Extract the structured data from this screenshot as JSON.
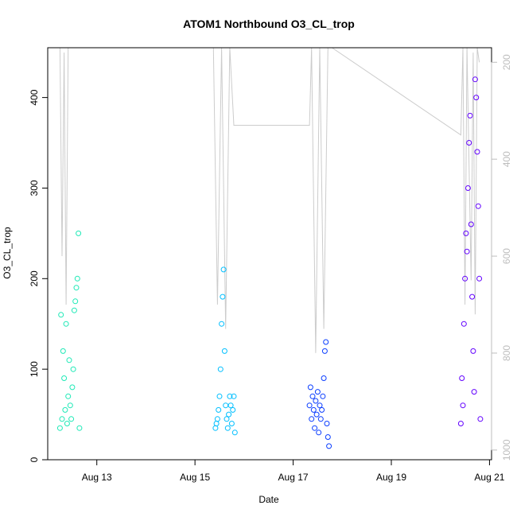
{
  "chart_data": {
    "type": "scatter",
    "title": "ATOM1 Northbound O3_CL_trop",
    "xlabel": "Date",
    "ylabel": "O3_CL_trop",
    "x_axis": {
      "type": "date",
      "range": [
        "2016-08-12T00:00",
        "2016-08-21T01:00"
      ],
      "ticks": [
        {
          "value": "2016-08-13",
          "label": "Aug 13"
        },
        {
          "value": "2016-08-15",
          "label": "Aug 15"
        },
        {
          "value": "2016-08-17",
          "label": "Aug 17"
        },
        {
          "value": "2016-08-19",
          "label": "Aug 19"
        },
        {
          "value": "2016-08-21",
          "label": "Aug 21"
        }
      ]
    },
    "y_axis": {
      "range": [
        0,
        455
      ],
      "ticks": [
        {
          "value": 0,
          "label": "0"
        },
        {
          "value": 100,
          "label": "100"
        },
        {
          "value": 200,
          "label": "200"
        },
        {
          "value": 300,
          "label": "300"
        },
        {
          "value": 400,
          "label": "400"
        }
      ]
    },
    "y2_axis": {
      "reversed": true,
      "color": "#bdbdbd",
      "range": [
        1020,
        170
      ],
      "ticks": [
        {
          "value": 200,
          "label": "200"
        },
        {
          "value": 400,
          "label": "400"
        },
        {
          "value": 600,
          "label": "600"
        },
        {
          "value": 800,
          "label": "800"
        },
        {
          "value": 1000,
          "label": "1000"
        }
      ]
    },
    "grid": false,
    "legend": "none",
    "series": [
      {
        "color": "#1de9b6",
        "flight": "Aug 12",
        "x": [
          "2016-08-12T06:00",
          "2016-08-12T06:30",
          "2016-08-12T07:00",
          "2016-08-12T07:30",
          "2016-08-12T08:00",
          "2016-08-12T08:30",
          "2016-08-12T09:00",
          "2016-08-12T09:30",
          "2016-08-12T10:00",
          "2016-08-12T10:30",
          "2016-08-12T11:00",
          "2016-08-12T11:30",
          "2016-08-12T12:00",
          "2016-08-12T12:30",
          "2016-08-12T13:00",
          "2016-08-12T13:30",
          "2016-08-12T14:00",
          "2016-08-12T14:30",
          "2016-08-12T15:00",
          "2016-08-12T15:30"
        ],
        "y": [
          35,
          160,
          45,
          120,
          90,
          55,
          150,
          40,
          70,
          110,
          60,
          45,
          80,
          100,
          165,
          175,
          190,
          200,
          250,
          35
        ]
      },
      {
        "color": "#00bfff",
        "flight": "Aug 15",
        "x": [
          "2016-08-15T10:00",
          "2016-08-15T10:30",
          "2016-08-15T11:00",
          "2016-08-15T11:30",
          "2016-08-15T12:00",
          "2016-08-15T12:30",
          "2016-08-15T13:00",
          "2016-08-15T13:30",
          "2016-08-15T14:00",
          "2016-08-15T14:30",
          "2016-08-15T15:00",
          "2016-08-15T15:30",
          "2016-08-15T16:00",
          "2016-08-15T16:30",
          "2016-08-15T17:00",
          "2016-08-15T17:30",
          "2016-08-15T18:00",
          "2016-08-15T18:30",
          "2016-08-15T19:00",
          "2016-08-15T19:30"
        ],
        "y": [
          35,
          40,
          45,
          55,
          70,
          100,
          150,
          180,
          210,
          120,
          60,
          45,
          35,
          50,
          70,
          60,
          40,
          55,
          70,
          30
        ]
      },
      {
        "color": "#0a3dff",
        "flight": "Aug 17",
        "x": [
          "2016-08-17T08:00",
          "2016-08-17T08:30",
          "2016-08-17T09:00",
          "2016-08-17T09:30",
          "2016-08-17T10:00",
          "2016-08-17T10:30",
          "2016-08-17T11:00",
          "2016-08-17T11:30",
          "2016-08-17T12:00",
          "2016-08-17T12:30",
          "2016-08-17T13:00",
          "2016-08-17T13:30",
          "2016-08-17T14:00",
          "2016-08-17T14:30",
          "2016-08-17T15:00",
          "2016-08-17T15:30",
          "2016-08-17T16:00",
          "2016-08-17T16:30",
          "2016-08-17T17:00",
          "2016-08-17T17:30"
        ],
        "y": [
          60,
          80,
          45,
          70,
          55,
          35,
          65,
          50,
          75,
          30,
          60,
          45,
          55,
          70,
          90,
          120,
          130,
          40,
          25,
          15
        ]
      },
      {
        "color": "#6200ff",
        "flight": "Aug 20",
        "x": [
          "2016-08-20T10:00",
          "2016-08-20T10:30",
          "2016-08-20T11:00",
          "2016-08-20T11:30",
          "2016-08-20T12:00",
          "2016-08-20T12:30",
          "2016-08-20T13:00",
          "2016-08-20T13:30",
          "2016-08-20T14:00",
          "2016-08-20T14:30",
          "2016-08-20T15:00",
          "2016-08-20T15:30",
          "2016-08-20T16:00",
          "2016-08-20T16:30",
          "2016-08-20T17:00",
          "2016-08-20T17:30",
          "2016-08-20T18:00",
          "2016-08-20T18:30",
          "2016-08-20T19:00",
          "2016-08-20T19:30"
        ],
        "y": [
          40,
          90,
          60,
          150,
          200,
          250,
          230,
          300,
          350,
          380,
          260,
          180,
          120,
          75,
          420,
          400,
          340,
          280,
          200,
          45
        ]
      }
    ],
    "pressure_line": {
      "color": "#cccccc",
      "x": [
        "2016-08-12T06:00",
        "2016-08-12T07:00",
        "2016-08-12T08:00",
        "2016-08-12T09:00",
        "2016-08-12T10:00",
        "2016-08-15T09:00",
        "2016-08-15T11:00",
        "2016-08-15T13:00",
        "2016-08-15T15:00",
        "2016-08-15T17:00",
        "2016-08-15T19:00",
        "2016-08-17T08:00",
        "2016-08-17T09:00",
        "2016-08-17T11:00",
        "2016-08-17T13:00",
        "2016-08-17T15:00",
        "2016-08-17T17:00",
        "2016-08-17T19:00",
        "2016-08-20T10:00",
        "2016-08-20T11:00",
        "2016-08-20T12:00",
        "2016-08-20T13:00",
        "2016-08-20T15:00",
        "2016-08-20T16:00",
        "2016-08-20T17:00",
        "2016-08-20T18:00",
        "2016-08-20T19:00"
      ],
      "y": [
        170,
        600,
        180,
        700,
        170,
        170,
        700,
        170,
        750,
        170,
        330,
        330,
        170,
        800,
        170,
        750,
        170,
        170,
        350,
        170,
        700,
        170,
        650,
        180,
        720,
        170,
        200
      ]
    }
  }
}
